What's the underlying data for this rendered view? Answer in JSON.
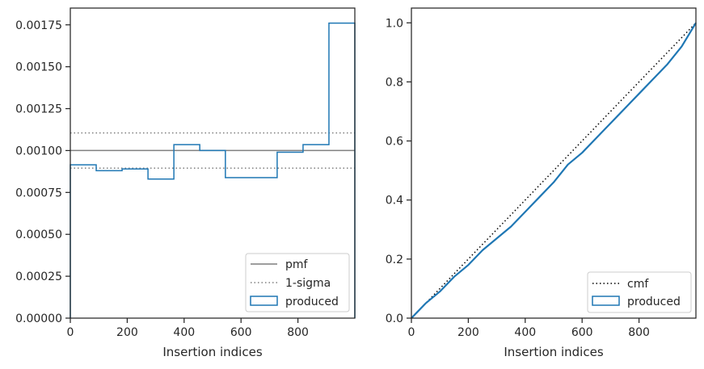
{
  "chart_data": [
    {
      "type": "step",
      "xlabel": "Insertion indices",
      "ylabel": "",
      "xlim": [
        0,
        1000
      ],
      "ylim": [
        0,
        0.00185
      ],
      "xticks": [
        0,
        200,
        400,
        600,
        800
      ],
      "xtick_labels": [
        "0",
        "200",
        "400",
        "600",
        "800"
      ],
      "yticks": [
        0,
        0.00025,
        0.0005,
        0.00075,
        0.001,
        0.00125,
        0.0015,
        0.00175
      ],
      "ytick_labels": [
        "0.00000",
        "0.00025",
        "0.00050",
        "0.00075",
        "0.00100",
        "0.00125",
        "0.00150",
        "0.00175"
      ],
      "legend_position": "lower-right",
      "series": [
        {
          "name": "pmf",
          "style": "solid",
          "color": "#7f7f7f",
          "y": 0.001
        },
        {
          "name": "1-sigma",
          "style": "dotted",
          "color": "#7f7f7f",
          "y_values": [
            0.000895,
            0.001105
          ]
        },
        {
          "name": "produced",
          "style": "step",
          "color": "#1f77b4",
          "bin_edges": [
            0,
            91,
            182,
            273,
            364,
            455,
            545,
            636,
            727,
            818,
            909,
            1000
          ],
          "values": [
            0.000915,
            0.00088,
            0.00089,
            0.00083,
            0.001035,
            0.001,
            0.000838,
            0.000838,
            0.00099,
            0.001035,
            0.00176
          ]
        }
      ]
    },
    {
      "type": "line",
      "xlabel": "Insertion indices",
      "ylabel": "",
      "xlim": [
        0,
        1000
      ],
      "ylim": [
        0,
        1.05
      ],
      "xticks": [
        0,
        200,
        400,
        600,
        800
      ],
      "xtick_labels": [
        "0",
        "200",
        "400",
        "600",
        "800"
      ],
      "yticks": [
        0,
        0.2,
        0.4,
        0.6,
        0.8,
        1.0
      ],
      "ytick_labels": [
        "0.0",
        "0.2",
        "0.4",
        "0.6",
        "0.8",
        "1.0"
      ],
      "legend_position": "lower-right",
      "series": [
        {
          "name": "cmf",
          "style": "dotted",
          "color": "#000000",
          "x": [
            0,
            1000
          ],
          "y": [
            0,
            1
          ]
        },
        {
          "name": "produced",
          "style": "step",
          "color": "#1f77b4",
          "x": [
            0,
            20,
            50,
            100,
            150,
            200,
            250,
            300,
            350,
            400,
            450,
            500,
            550,
            600,
            650,
            700,
            750,
            800,
            850,
            900,
            950,
            1000
          ],
          "y": [
            0,
            0.02,
            0.05,
            0.09,
            0.14,
            0.18,
            0.23,
            0.27,
            0.31,
            0.36,
            0.41,
            0.46,
            0.52,
            0.56,
            0.61,
            0.66,
            0.71,
            0.76,
            0.81,
            0.86,
            0.92,
            1.0
          ]
        }
      ]
    }
  ]
}
